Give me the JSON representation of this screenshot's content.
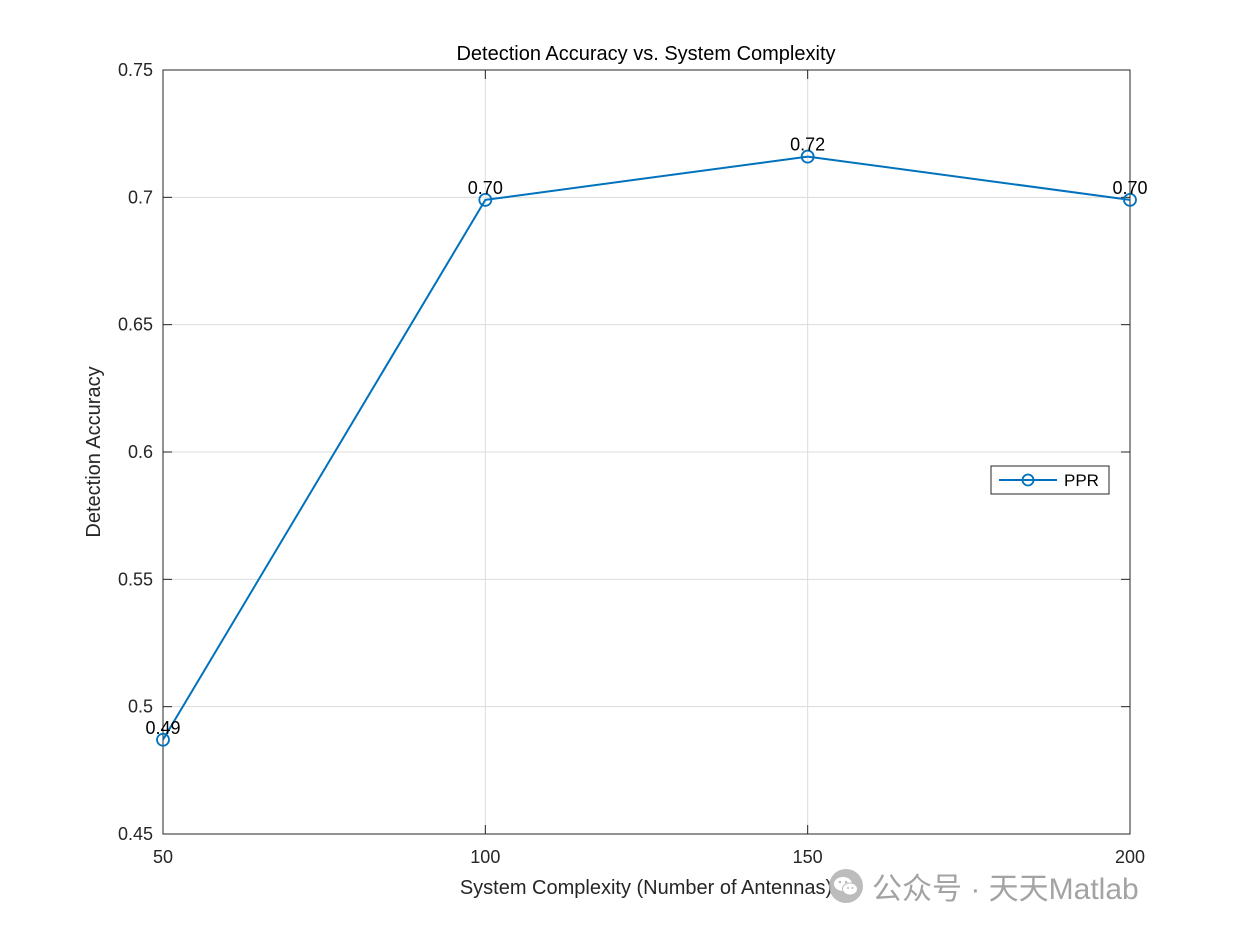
{
  "chart_data": {
    "type": "line",
    "title": "Detection Accuracy vs. System Complexity",
    "xlabel": "System Complexity (Number of Antennas)",
    "ylabel": "Detection Accuracy",
    "x": [
      50,
      100,
      150,
      200
    ],
    "xlim": [
      50,
      200
    ],
    "ylim": [
      0.45,
      0.75
    ],
    "xticks": [
      50,
      100,
      150,
      200
    ],
    "xtick_labels": [
      "50",
      "100",
      "150",
      "200"
    ],
    "yticks": [
      0.45,
      0.5,
      0.55,
      0.6,
      0.65,
      0.7,
      0.75
    ],
    "ytick_labels": [
      "0.45",
      "0.5",
      "0.55",
      "0.6",
      "0.65",
      "0.7",
      "0.75"
    ],
    "grid": true,
    "legend_position": "right",
    "series": [
      {
        "name": "PPR",
        "color": "#0072BD",
        "marker": "circle",
        "values": [
          0.487,
          0.699,
          0.716,
          0.699
        ],
        "data_labels": [
          "0.49",
          "0.70",
          "0.72",
          "0.70"
        ]
      }
    ]
  },
  "watermark": {
    "icon": "wechat-icon",
    "text": "公众号 · 天天Matlab"
  }
}
